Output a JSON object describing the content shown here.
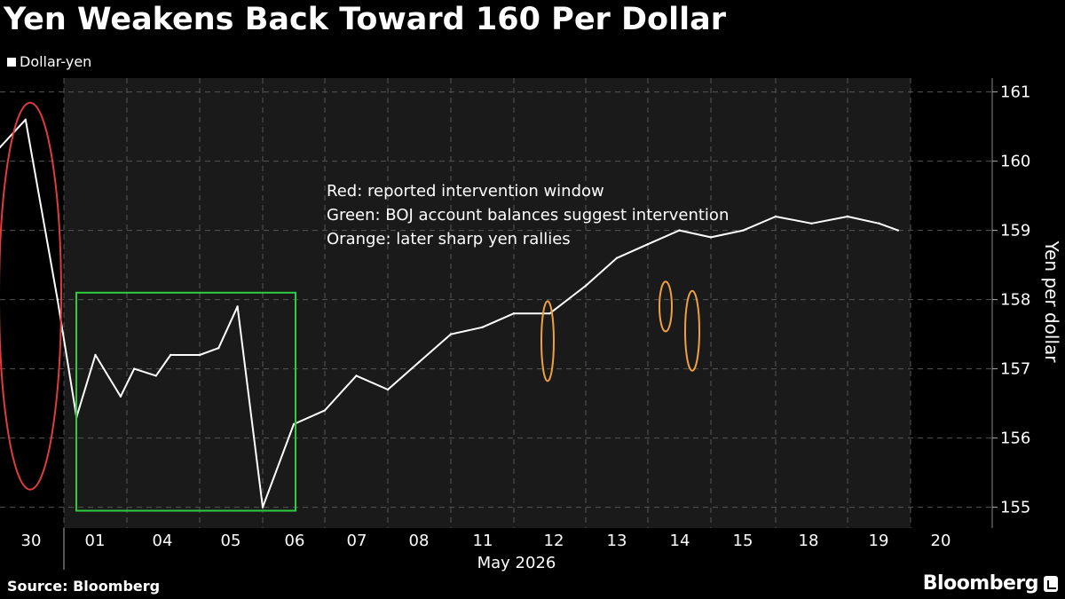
{
  "title": "Yen Weakens Back Toward 160 Per Dollar",
  "legend": {
    "label": "Dollar-yen",
    "color": "#ffffff"
  },
  "source": "Source: Bloomberg",
  "brand": "Bloomberg",
  "colors": {
    "background": "#000000",
    "shade": "#1a1a1a",
    "line": "#ffffff",
    "red": "#e03c3c",
    "green": "#2ecc40",
    "orange": "#f0a040"
  },
  "chart_data": {
    "type": "line",
    "title": "Yen Weakens Back Toward 160 Per Dollar",
    "xlabel": "May 2026",
    "ylabel": "Yen per dollar",
    "ylim": [
      154.7,
      161.2
    ],
    "yticks": [
      155,
      156,
      157,
      158,
      159,
      160,
      161
    ],
    "grid": true,
    "legend_position": "top-left",
    "x_tick_labels": [
      "30",
      "01",
      "04",
      "05",
      "06",
      "07",
      "08",
      "11",
      "12",
      "13",
      "14",
      "15",
      "18",
      "19",
      "20"
    ],
    "series": [
      {
        "name": "Dollar-yen",
        "x": [
          0,
          0.4,
          0.9,
          1.2,
          1.5,
          1.9,
          2.1,
          2.4,
          2.6,
          3.0,
          3.3,
          3.6,
          4.0,
          4.5,
          5.0,
          5.5,
          6.0,
          6.5,
          7.0,
          7.5,
          8.0,
          8.5,
          9.0,
          9.5,
          10.0,
          10.5,
          11.0,
          11.5,
          12.0,
          12.5,
          13.0,
          13.5,
          13.8
        ],
        "values": [
          160.2,
          160.6,
          158.0,
          156.3,
          157.2,
          156.6,
          157.0,
          156.9,
          157.2,
          157.2,
          157.3,
          157.9,
          155.0,
          156.2,
          156.4,
          156.9,
          156.7,
          157.1,
          157.5,
          157.6,
          157.8,
          157.8,
          158.2,
          158.6,
          158.8,
          159.0,
          158.9,
          159.0,
          159.2,
          159.1,
          159.2,
          159.1,
          159.0
        ],
        "color": "#ffffff"
      }
    ],
    "annotations": [
      "Red: reported intervention window",
      "Green: BOJ account balances suggest intervention",
      "Orange: later sharp yen rallies"
    ]
  }
}
